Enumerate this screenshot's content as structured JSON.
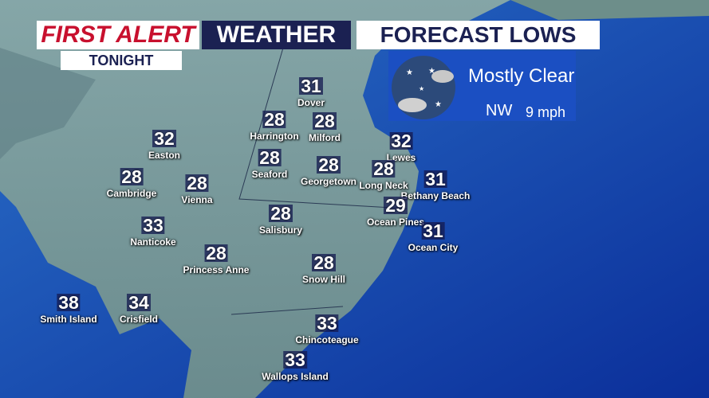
{
  "header": {
    "brand_first": "FIRST ALERT",
    "brand_weather": "WEATHER",
    "title": "FORECAST LOWS",
    "subtitle": "TONIGHT"
  },
  "conditions": {
    "sky": "Mostly Clear",
    "wind_direction": "NW",
    "wind_speed": "9 mph"
  },
  "cities": [
    {
      "name": "Dover",
      "temp": "31"
    },
    {
      "name": "Harrington",
      "temp": "28"
    },
    {
      "name": "Milford",
      "temp": "28"
    },
    {
      "name": "Lewes",
      "temp": "32"
    },
    {
      "name": "Easton",
      "temp": "32"
    },
    {
      "name": "Seaford",
      "temp": "28"
    },
    {
      "name": "Georgetown",
      "temp": "28"
    },
    {
      "name": "Long Neck",
      "temp": "28"
    },
    {
      "name": "Bethany Beach",
      "temp": "31"
    },
    {
      "name": "Cambridge",
      "temp": "28"
    },
    {
      "name": "Vienna",
      "temp": "28"
    },
    {
      "name": "Ocean Pines",
      "temp": "29"
    },
    {
      "name": "Salisbury",
      "temp": "28"
    },
    {
      "name": "Ocean City",
      "temp": "31"
    },
    {
      "name": "Nanticoke",
      "temp": "33"
    },
    {
      "name": "Princess Anne",
      "temp": "28"
    },
    {
      "name": "Snow Hill",
      "temp": "28"
    },
    {
      "name": "Smith Island",
      "temp": "38"
    },
    {
      "name": "Crisfield",
      "temp": "34"
    },
    {
      "name": "Chincoteague",
      "temp": "33"
    },
    {
      "name": "Wallops Island",
      "temp": "33"
    }
  ]
}
